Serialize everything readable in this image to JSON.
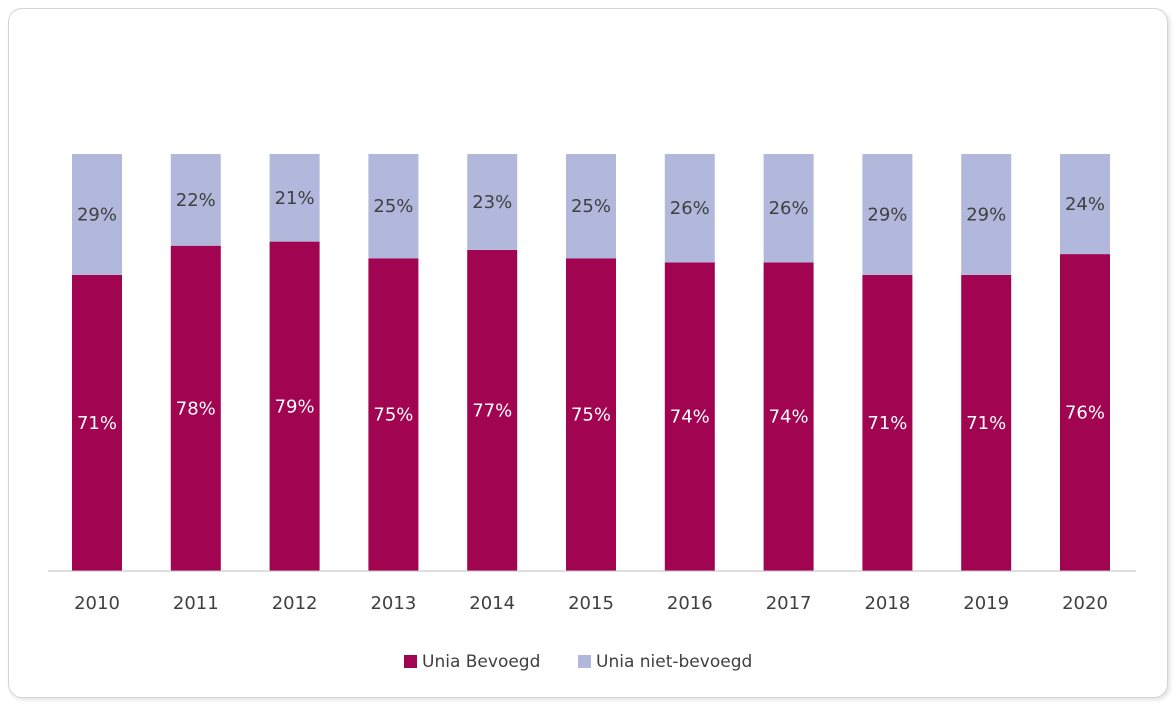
{
  "chart_data": {
    "type": "bar",
    "stacked": true,
    "categories": [
      "2010",
      "2011",
      "2012",
      "2013",
      "2014",
      "2015",
      "2016",
      "2017",
      "2018",
      "2019",
      "2020"
    ],
    "series": [
      {
        "name": "Unia Bevoegd",
        "color": "#a10552",
        "label_color": "#ffffff",
        "values": [
          71,
          78,
          79,
          75,
          77,
          75,
          74,
          74,
          71,
          71,
          76
        ],
        "labels": [
          "71%",
          "78%",
          "79%",
          "75%",
          "77%",
          "75%",
          "74%",
          "74%",
          "71%",
          "71%",
          "76%"
        ]
      },
      {
        "name": "Unia niet-bevoegd",
        "color": "#b1b8dc",
        "label_color": "#404040",
        "values": [
          29,
          22,
          21,
          25,
          23,
          25,
          26,
          26,
          29,
          29,
          24
        ],
        "labels": [
          "29%",
          "22%",
          "21%",
          "25%",
          "23%",
          "25%",
          "26%",
          "26%",
          "29%",
          "29%",
          "24%"
        ]
      }
    ],
    "ylim": [
      0,
      100
    ],
    "y_unit": "%",
    "grid": false,
    "legend_position": "bottom"
  }
}
